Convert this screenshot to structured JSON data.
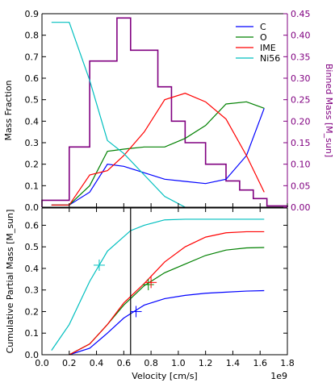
{
  "chart_data": [
    {
      "type": "line",
      "secondary_type": "step",
      "xlim": [
        0,
        1.8
      ],
      "ylim": [
        0,
        0.9
      ],
      "ylabel": "Mass Fraction",
      "yticks": [
        "0.0",
        "0.1",
        "0.2",
        "0.3",
        "0.4",
        "0.5",
        "0.6",
        "0.7",
        "0.8",
        "0.9"
      ],
      "y2lim": [
        0,
        0.45
      ],
      "y2label": "Binned Mass [M_sun]",
      "y2ticks": [
        "0.00",
        "0.05",
        "0.10",
        "0.15",
        "0.20",
        "0.25",
        "0.30",
        "0.35",
        "0.40",
        "0.45"
      ],
      "grid": false,
      "legend_position": "top-right",
      "series": [
        {
          "name": "C",
          "color": "#0000ff",
          "x": [
            0.07,
            0.2,
            0.35,
            0.48,
            0.6,
            0.75,
            0.9,
            1.05,
            1.2,
            1.35,
            1.5,
            1.63
          ],
          "y": [
            0.01,
            0.01,
            0.07,
            0.2,
            0.19,
            0.16,
            0.13,
            0.12,
            0.11,
            0.13,
            0.24,
            0.46
          ]
        },
        {
          "name": "O",
          "color": "#008000",
          "x": [
            0.07,
            0.2,
            0.35,
            0.48,
            0.6,
            0.75,
            0.9,
            1.05,
            1.2,
            1.35,
            1.5,
            1.63
          ],
          "y": [
            0.01,
            0.01,
            0.1,
            0.26,
            0.27,
            0.28,
            0.28,
            0.32,
            0.38,
            0.48,
            0.49,
            0.46
          ]
        },
        {
          "name": "IME",
          "color": "#ff0000",
          "x": [
            0.07,
            0.2,
            0.35,
            0.48,
            0.6,
            0.75,
            0.9,
            1.05,
            1.2,
            1.35,
            1.5,
            1.63
          ],
          "y": [
            0.01,
            0.01,
            0.15,
            0.17,
            0.24,
            0.35,
            0.5,
            0.53,
            0.49,
            0.41,
            0.24,
            0.07
          ]
        },
        {
          "name": "Ni56",
          "color": "#00bfbf",
          "x": [
            0.07,
            0.2,
            0.35,
            0.48,
            0.6,
            0.75,
            0.9,
            1.05
          ],
          "y": [
            0.86,
            0.86,
            0.59,
            0.31,
            0.25,
            0.15,
            0.05,
            0.0
          ]
        }
      ],
      "binned_mass": {
        "color": "#800080",
        "edges": [
          0,
          0.2,
          0.35,
          0.55,
          0.65,
          0.85,
          0.95,
          1.05,
          1.2,
          1.35,
          1.45,
          1.55,
          1.65,
          1.8
        ],
        "values": [
          0.016,
          0.14,
          0.34,
          0.44,
          0.365,
          0.28,
          0.2,
          0.15,
          0.1,
          0.061,
          0.04,
          0.02,
          0.003
        ]
      }
    },
    {
      "type": "line",
      "xlim": [
        0,
        1.8
      ],
      "ylim": [
        0,
        0.68
      ],
      "xlabel": "Velocity [cm/s]",
      "ylabel": "Cumulative Partial Mass [M_sun]",
      "x_multiplier_label": "1e9",
      "xticks": [
        "0.0",
        "0.2",
        "0.4",
        "0.6",
        "0.8",
        "1.0",
        "1.2",
        "1.4",
        "1.6",
        "1.8"
      ],
      "yticks": [
        "0.0",
        "0.1",
        "0.2",
        "0.3",
        "0.4",
        "0.5",
        "0.6"
      ],
      "grid": false,
      "vertical_line": {
        "x": 0.65,
        "color": "#000000"
      },
      "series": [
        {
          "name": "C",
          "color": "#0000ff",
          "x": [
            0.2,
            0.35,
            0.48,
            0.6,
            0.75,
            0.9,
            1.05,
            1.2,
            1.35,
            1.5,
            1.63
          ],
          "y": [
            0.0,
            0.03,
            0.1,
            0.17,
            0.23,
            0.26,
            0.275,
            0.285,
            0.29,
            0.295,
            0.297
          ],
          "marker": {
            "x": 0.69,
            "y": 0.2
          }
        },
        {
          "name": "O",
          "color": "#008000",
          "x": [
            0.2,
            0.35,
            0.48,
            0.6,
            0.75,
            0.9,
            1.05,
            1.2,
            1.35,
            1.5,
            1.63
          ],
          "y": [
            0.0,
            0.05,
            0.14,
            0.23,
            0.32,
            0.38,
            0.42,
            0.46,
            0.485,
            0.495,
            0.497
          ],
          "marker": {
            "x": 0.78,
            "y": 0.325
          }
        },
        {
          "name": "IME",
          "color": "#ff0000",
          "x": [
            0.2,
            0.35,
            0.48,
            0.6,
            0.75,
            0.9,
            1.05,
            1.2,
            1.35,
            1.5,
            1.63
          ],
          "y": [
            0.0,
            0.05,
            0.14,
            0.24,
            0.33,
            0.43,
            0.5,
            0.545,
            0.565,
            0.57,
            0.57
          ],
          "marker": {
            "x": 0.8,
            "y": 0.335
          }
        },
        {
          "name": "Ni56",
          "color": "#00bfbf",
          "x": [
            0.07,
            0.2,
            0.35,
            0.48,
            0.65,
            0.75,
            0.9,
            1.05,
            1.2,
            1.35,
            1.5,
            1.63
          ],
          "y": [
            0.02,
            0.14,
            0.34,
            0.48,
            0.575,
            0.6,
            0.625,
            0.628,
            0.628,
            0.628,
            0.628,
            0.628
          ],
          "marker": {
            "x": 0.42,
            "y": 0.415
          }
        }
      ]
    }
  ]
}
